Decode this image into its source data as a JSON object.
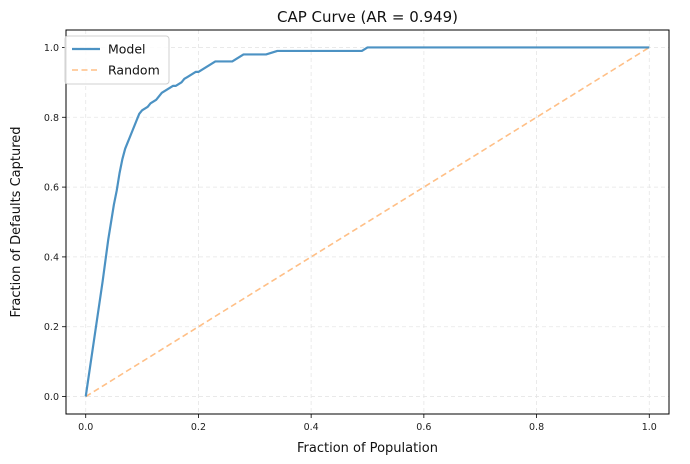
{
  "chart_data": {
    "type": "line",
    "title": "CAP Curve (AR = 0.949)",
    "xlabel": "Fraction of Population",
    "ylabel": "Fraction of Defaults Captured",
    "xlim": [
      -0.035,
      1.035
    ],
    "ylim": [
      -0.05,
      1.05
    ],
    "xticks": [
      0.0,
      0.2,
      0.4,
      0.6,
      0.8,
      1.0
    ],
    "yticks": [
      0.0,
      0.2,
      0.4,
      0.6,
      0.8,
      1.0
    ],
    "xtick_labels": [
      "0.0",
      "0.2",
      "0.4",
      "0.6",
      "0.8",
      "1.0"
    ],
    "ytick_labels": [
      "0.0",
      "0.2",
      "0.4",
      "0.6",
      "0.8",
      "1.0"
    ],
    "grid": true,
    "legend_position": "top-left",
    "series": [
      {
        "name": "Model",
        "color": "#4c92c3",
        "style": "solid",
        "x": [
          0.0,
          0.01,
          0.02,
          0.03,
          0.035,
          0.04,
          0.05,
          0.055,
          0.06,
          0.065,
          0.07,
          0.075,
          0.08,
          0.085,
          0.09,
          0.095,
          0.1,
          0.105,
          0.11,
          0.115,
          0.12,
          0.125,
          0.13,
          0.135,
          0.14,
          0.145,
          0.15,
          0.155,
          0.16,
          0.165,
          0.17,
          0.175,
          0.18,
          0.185,
          0.19,
          0.195,
          0.2,
          0.205,
          0.21,
          0.215,
          0.22,
          0.225,
          0.23,
          0.24,
          0.25,
          0.26,
          0.27,
          0.28,
          0.29,
          0.3,
          0.31,
          0.32,
          0.33,
          0.34,
          0.35,
          0.4,
          0.45,
          0.49,
          0.495,
          0.5,
          0.6,
          0.7,
          0.8,
          0.9,
          1.0
        ],
        "y": [
          0.0,
          0.11,
          0.22,
          0.33,
          0.39,
          0.45,
          0.55,
          0.59,
          0.64,
          0.68,
          0.71,
          0.73,
          0.75,
          0.77,
          0.79,
          0.81,
          0.82,
          0.825,
          0.83,
          0.84,
          0.845,
          0.85,
          0.86,
          0.87,
          0.875,
          0.88,
          0.885,
          0.89,
          0.89,
          0.895,
          0.9,
          0.91,
          0.915,
          0.92,
          0.925,
          0.93,
          0.93,
          0.935,
          0.94,
          0.945,
          0.95,
          0.955,
          0.96,
          0.96,
          0.96,
          0.96,
          0.97,
          0.98,
          0.98,
          0.98,
          0.98,
          0.98,
          0.985,
          0.99,
          0.99,
          0.99,
          0.99,
          0.99,
          0.995,
          1.0,
          1.0,
          1.0,
          1.0,
          1.0,
          1.0
        ]
      },
      {
        "name": "Random",
        "color": "#ffbf86",
        "style": "dashed",
        "x": [
          0.0,
          1.0
        ],
        "y": [
          0.0,
          1.0
        ]
      }
    ]
  }
}
